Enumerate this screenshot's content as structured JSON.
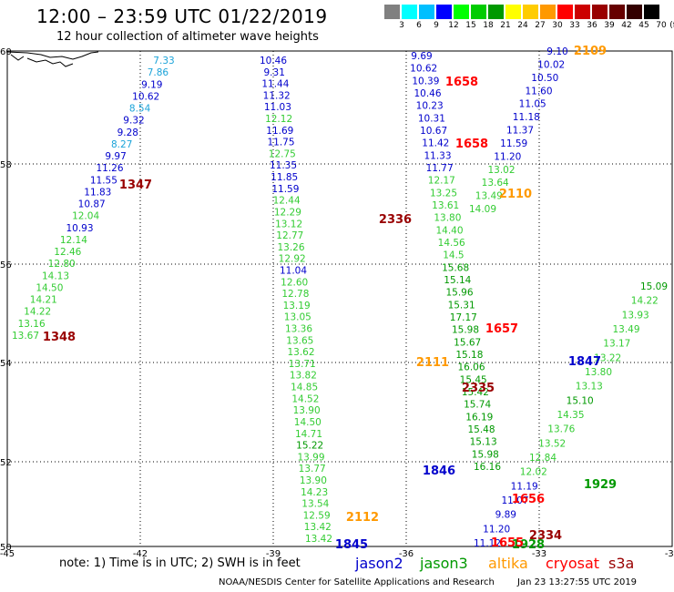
{
  "header": {
    "title": "12:00 – 23:59 UTC 01/22/2019",
    "subtitle": "12 hour collection of altimeter wave heights"
  },
  "legend": {
    "unit": "(ft)",
    "ticks": [
      "3",
      "6",
      "9",
      "12",
      "15",
      "18",
      "21",
      "24",
      "27",
      "30",
      "33",
      "36",
      "39",
      "42",
      "45",
      "70"
    ],
    "colors": [
      "#808080",
      "#00ffff",
      "#00bfff",
      "#0000ff",
      "#00ff00",
      "#00cc00",
      "#009900",
      "#ffff00",
      "#ffcc00",
      "#ff9900",
      "#ff0000",
      "#cc0000",
      "#990000",
      "#660000",
      "#330000",
      "#000000"
    ]
  },
  "axes": {
    "lon_labels": [
      "-45",
      "-42",
      "-39",
      "-36",
      "-33",
      "-30"
    ],
    "lat_labels": [
      "60",
      "58",
      "56",
      "54",
      "52",
      "50"
    ]
  },
  "tracks": [
    {
      "name": "left-track",
      "values": [
        {
          "v": "7.33",
          "c": "#1aa3d9"
        },
        {
          "v": "7.86",
          "c": "#1aa3d9"
        },
        {
          "v": "9.19",
          "c": "#0000cc"
        },
        {
          "v": "10.62",
          "c": "#0000cc"
        },
        {
          "v": "8.54",
          "c": "#1aa3d9"
        },
        {
          "v": "9.32",
          "c": "#0000cc"
        },
        {
          "v": "9.28",
          "c": "#0000cc"
        },
        {
          "v": "8.27",
          "c": "#1aa3d9"
        },
        {
          "v": "9.97",
          "c": "#0000cc"
        },
        {
          "v": "11.26",
          "c": "#0000cc"
        },
        {
          "v": "11.55",
          "c": "#0000cc"
        },
        {
          "v": "11.83",
          "c": "#0000cc"
        },
        {
          "v": "10.87",
          "c": "#0000cc"
        },
        {
          "v": "12.04",
          "c": "#33cc33"
        },
        {
          "v": "10.93",
          "c": "#0000cc"
        },
        {
          "v": "12.14",
          "c": "#33cc33"
        },
        {
          "v": "12.46",
          "c": "#33cc33"
        },
        {
          "v": "12.80",
          "c": "#33cc33"
        },
        {
          "v": "14.13",
          "c": "#33cc33"
        },
        {
          "v": "14.50",
          "c": "#33cc33"
        },
        {
          "v": "14.21",
          "c": "#33cc33"
        },
        {
          "v": "14.22",
          "c": "#33cc33"
        },
        {
          "v": "13.16",
          "c": "#33cc33"
        },
        {
          "v": "13.67",
          "c": "#33cc33"
        }
      ]
    },
    {
      "name": "mid-track",
      "values": [
        {
          "v": "10.46",
          "c": "#0000cc"
        },
        {
          "v": "9.31",
          "c": "#0000cc"
        },
        {
          "v": "11.44",
          "c": "#0000cc"
        },
        {
          "v": "11.32",
          "c": "#0000cc"
        },
        {
          "v": "11.03",
          "c": "#0000cc"
        },
        {
          "v": "12.12",
          "c": "#33cc33"
        },
        {
          "v": "11.69",
          "c": "#0000cc"
        },
        {
          "v": "11.75",
          "c": "#0000cc"
        },
        {
          "v": "12.75",
          "c": "#33cc33"
        },
        {
          "v": "11.35",
          "c": "#0000cc"
        },
        {
          "v": "11.85",
          "c": "#0000cc"
        },
        {
          "v": "11.59",
          "c": "#0000cc"
        },
        {
          "v": "12.44",
          "c": "#33cc33"
        },
        {
          "v": "12.29",
          "c": "#33cc33"
        },
        {
          "v": "13.12",
          "c": "#33cc33"
        },
        {
          "v": "12.77",
          "c": "#33cc33"
        },
        {
          "v": "13.26",
          "c": "#33cc33"
        },
        {
          "v": "12.92",
          "c": "#33cc33"
        },
        {
          "v": "11.04",
          "c": "#0000cc"
        },
        {
          "v": "12.60",
          "c": "#33cc33"
        },
        {
          "v": "12.78",
          "c": "#33cc33"
        },
        {
          "v": "13.19",
          "c": "#33cc33"
        },
        {
          "v": "13.05",
          "c": "#33cc33"
        },
        {
          "v": "13.36",
          "c": "#33cc33"
        },
        {
          "v": "13.65",
          "c": "#33cc33"
        },
        {
          "v": "13.62",
          "c": "#33cc33"
        },
        {
          "v": "13.71",
          "c": "#33cc33"
        },
        {
          "v": "13.82",
          "c": "#33cc33"
        },
        {
          "v": "14.85",
          "c": "#33cc33"
        },
        {
          "v": "14.52",
          "c": "#33cc33"
        },
        {
          "v": "13.90",
          "c": "#33cc33"
        },
        {
          "v": "14.50",
          "c": "#33cc33"
        },
        {
          "v": "14.71",
          "c": "#33cc33"
        },
        {
          "v": "15.22",
          "c": "#009900"
        },
        {
          "v": "13.99",
          "c": "#33cc33"
        },
        {
          "v": "13.77",
          "c": "#33cc33"
        },
        {
          "v": "13.90",
          "c": "#33cc33"
        },
        {
          "v": "14.23",
          "c": "#33cc33"
        },
        {
          "v": "13.54",
          "c": "#33cc33"
        },
        {
          "v": "12.59",
          "c": "#33cc33"
        },
        {
          "v": "13.42",
          "c": "#33cc33"
        },
        {
          "v": "13.42",
          "c": "#33cc33"
        }
      ]
    },
    {
      "name": "upper-right-track",
      "values": [
        {
          "v": "9.69",
          "c": "#0000cc"
        },
        {
          "v": "10.62",
          "c": "#0000cc"
        },
        {
          "v": "10.39",
          "c": "#0000cc"
        },
        {
          "v": "10.46",
          "c": "#0000cc"
        },
        {
          "v": "10.23",
          "c": "#0000cc"
        },
        {
          "v": "10.31",
          "c": "#0000cc"
        },
        {
          "v": "10.67",
          "c": "#0000cc"
        },
        {
          "v": "11.42",
          "c": "#0000cc"
        },
        {
          "v": "11.33",
          "c": "#0000cc"
        },
        {
          "v": "11.77",
          "c": "#0000cc"
        },
        {
          "v": "12.17",
          "c": "#33cc33"
        },
        {
          "v": "13.25",
          "c": "#33cc33"
        },
        {
          "v": "13.61",
          "c": "#33cc33"
        },
        {
          "v": "13.80",
          "c": "#33cc33"
        },
        {
          "v": "14.40",
          "c": "#33cc33"
        },
        {
          "v": "14.56",
          "c": "#33cc33"
        },
        {
          "v": "14.5",
          "c": "#33cc33"
        },
        {
          "v": "15.68",
          "c": "#009900"
        },
        {
          "v": "15.14",
          "c": "#009900"
        },
        {
          "v": "15.96",
          "c": "#009900"
        },
        {
          "v": "15.31",
          "c": "#009900"
        },
        {
          "v": "17.17",
          "c": "#009900"
        },
        {
          "v": "15.98",
          "c": "#009900"
        },
        {
          "v": "15.67",
          "c": "#009900"
        },
        {
          "v": "15.18",
          "c": "#009900"
        },
        {
          "v": "16.06",
          "c": "#009900"
        },
        {
          "v": "15.45",
          "c": "#009900"
        },
        {
          "v": "15.42",
          "c": "#009900"
        },
        {
          "v": "15.74",
          "c": "#009900"
        },
        {
          "v": "16.19",
          "c": "#009900"
        },
        {
          "v": "15.48",
          "c": "#009900"
        },
        {
          "v": "15.13",
          "c": "#009900"
        },
        {
          "v": "15.98",
          "c": "#009900"
        },
        {
          "v": "16.16",
          "c": "#009900"
        }
      ]
    },
    {
      "name": "ne-track",
      "values": [
        {
          "v": "9.10",
          "c": "#0000cc"
        },
        {
          "v": "10.02",
          "c": "#0000cc"
        },
        {
          "v": "10.50",
          "c": "#0000cc"
        },
        {
          "v": "11.60",
          "c": "#0000cc"
        },
        {
          "v": "11.05",
          "c": "#0000cc"
        },
        {
          "v": "11.18",
          "c": "#0000cc"
        },
        {
          "v": "11.37",
          "c": "#0000cc"
        },
        {
          "v": "11.59",
          "c": "#0000cc"
        },
        {
          "v": "11.20",
          "c": "#0000cc"
        },
        {
          "v": "13.02",
          "c": "#33cc33"
        },
        {
          "v": "13.64",
          "c": "#33cc33"
        },
        {
          "v": "13.49",
          "c": "#33cc33"
        },
        {
          "v": "14.09",
          "c": "#33cc33"
        }
      ]
    },
    {
      "name": "east-track",
      "values": [
        {
          "v": "15.09",
          "c": "#009900"
        },
        {
          "v": "14.22",
          "c": "#33cc33"
        },
        {
          "v": "13.93",
          "c": "#33cc33"
        },
        {
          "v": "13.49",
          "c": "#33cc33"
        },
        {
          "v": "13.17",
          "c": "#33cc33"
        },
        {
          "v": "13.22",
          "c": "#33cc33"
        },
        {
          "v": "13.80",
          "c": "#33cc33"
        },
        {
          "v": "13.13",
          "c": "#33cc33"
        },
        {
          "v": "15.10",
          "c": "#009900"
        },
        {
          "v": "14.35",
          "c": "#33cc33"
        },
        {
          "v": "13.76",
          "c": "#33cc33"
        },
        {
          "v": "13.52",
          "c": "#33cc33"
        },
        {
          "v": "12.84",
          "c": "#33cc33"
        },
        {
          "v": "12.02",
          "c": "#33cc33"
        },
        {
          "v": "11.19",
          "c": "#0000cc"
        },
        {
          "v": "11.07",
          "c": "#0000cc"
        },
        {
          "v": "9.89",
          "c": "#0000cc"
        },
        {
          "v": "11.20",
          "c": "#0000cc"
        },
        {
          "v": "11.12",
          "c": "#0000cc"
        }
      ]
    }
  ],
  "time_labels": [
    {
      "t": "2109",
      "c": "#ff9900"
    },
    {
      "t": "1658",
      "c": "#ff0000"
    },
    {
      "t": "1658",
      "c": "#ff0000"
    },
    {
      "t": "1347",
      "c": "#990000"
    },
    {
      "t": "2110",
      "c": "#ff9900"
    },
    {
      "t": "2336",
      "c": "#990000"
    },
    {
      "t": "1348",
      "c": "#990000"
    },
    {
      "t": "1657",
      "c": "#ff0000"
    },
    {
      "t": "2111",
      "c": "#ff9900"
    },
    {
      "t": "1847",
      "c": "#0000cc"
    },
    {
      "t": "2335",
      "c": "#990000"
    },
    {
      "t": "1846",
      "c": "#0000cc"
    },
    {
      "t": "1929",
      "c": "#009900"
    },
    {
      "t": "1656",
      "c": "#ff0000"
    },
    {
      "t": "2112",
      "c": "#ff9900"
    },
    {
      "t": "2334",
      "c": "#990000"
    },
    {
      "t": "1845",
      "c": "#0000cc"
    },
    {
      "t": "1928",
      "c": "#009900"
    },
    {
      "t": "1655",
      "c": "#ff0000"
    }
  ],
  "footer": {
    "note": "note:  1) Time is in UTC;  2) SWH is in feet",
    "satellites": [
      {
        "name": "jason2",
        "color": "#0000cc"
      },
      {
        "name": "jason3",
        "color": "#009900"
      },
      {
        "name": "altika",
        "color": "#ff9900"
      },
      {
        "name": "cryosat",
        "color": "#ff0000"
      },
      {
        "name": "s3a",
        "color": "#990000"
      }
    ],
    "credit": "NOAA/NESDIS Center for Satellite Applications and Research",
    "timestamp": "Jan 23 13:27:55 UTC 2019"
  }
}
